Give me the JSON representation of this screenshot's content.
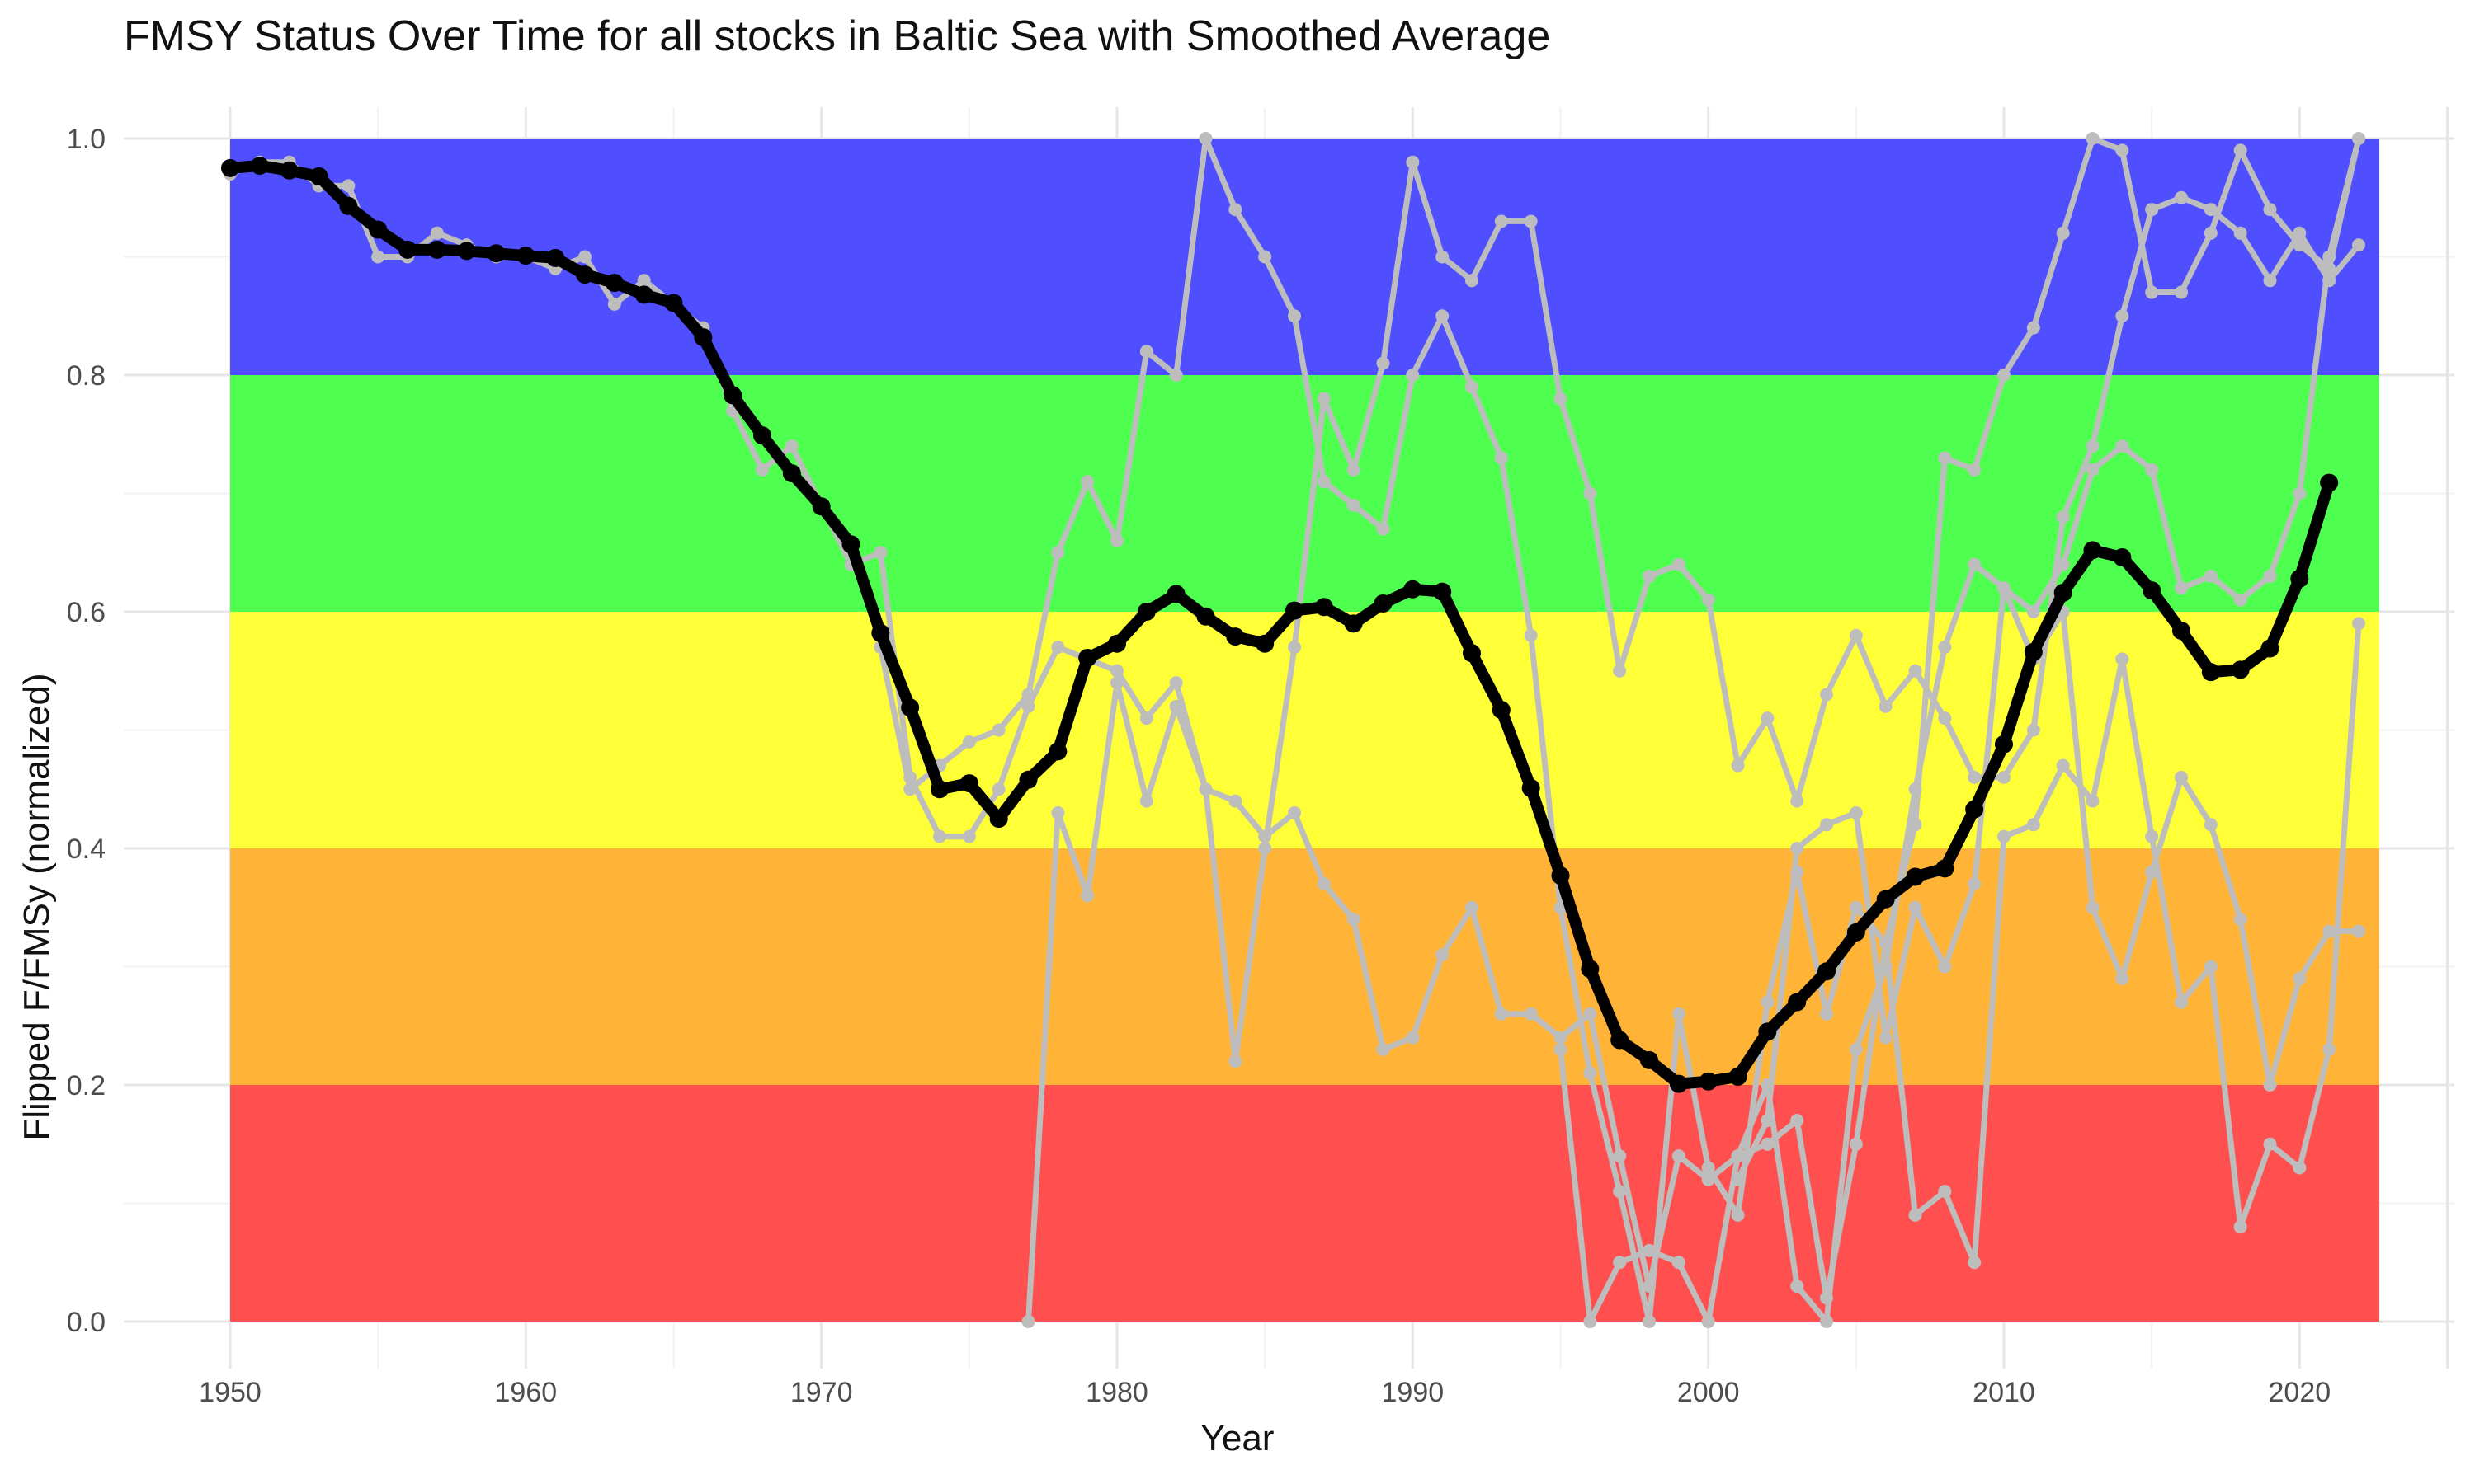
{
  "chart_data": {
    "type": "line",
    "title": "FMSY Status Over Time for all stocks in Baltic Sea with Smoothed Average",
    "xlabel": "Year",
    "ylabel": "Flipped F/FMSy (normalized)",
    "xlim": [
      1950,
      2025
    ],
    "ylim": [
      0,
      1
    ],
    "x_ticks": [
      1950,
      1960,
      1970,
      1980,
      1990,
      2000,
      2010,
      2020
    ],
    "y_ticks": [
      "0.0",
      "0.2",
      "0.4",
      "0.6",
      "0.8",
      "1.0"
    ],
    "grid": true,
    "bands": [
      {
        "from": 0.8,
        "to": 1.0,
        "color": "#4b4bff"
      },
      {
        "from": 0.6,
        "to": 0.8,
        "color": "#4bff4b"
      },
      {
        "from": 0.4,
        "to": 0.6,
        "color": "#ffff33"
      },
      {
        "from": 0.2,
        "to": 0.4,
        "color": "#ffb233"
      },
      {
        "from": 0.0,
        "to": 0.2,
        "color": "#ff4b4b"
      }
    ],
    "stock_color": "#bdbdbd",
    "average_color": "#000000",
    "stocks": [
      {
        "x": [
          1950,
          1951,
          1952,
          1953,
          1954,
          1955,
          1956,
          1957,
          1958,
          1959,
          1960,
          1961,
          1962,
          1963,
          1964,
          1965,
          1966,
          1967,
          1968,
          1969,
          1970,
          1971,
          1972,
          1973,
          1974,
          1975,
          1976,
          1977,
          1978,
          1979,
          1980,
          1981,
          1982,
          1983,
          1984,
          1985,
          1986,
          1987,
          1988,
          1989,
          1990,
          1991,
          1992,
          1993,
          1994,
          1995,
          1996,
          1997,
          1998,
          1999,
          2000,
          2001,
          2002,
          2003,
          2004,
          2005,
          2006,
          2007,
          2008,
          2009,
          2010,
          2011,
          2012,
          2013,
          2014,
          2015,
          2016,
          2017,
          2018,
          2019,
          2020,
          2021,
          2022
        ],
        "y": [
          0.97,
          0.98,
          0.98,
          0.96,
          0.96,
          0.9,
          0.9,
          0.92,
          0.91,
          0.9,
          0.9,
          0.89,
          0.9,
          0.86,
          0.88,
          0.86,
          0.84,
          0.77,
          0.72,
          0.74,
          0.69,
          0.64,
          0.65,
          0.46,
          0.41,
          0.41,
          0.45,
          0.52,
          0.57,
          0.56,
          0.55,
          0.51,
          0.54,
          0.45,
          0.44,
          0.41,
          0.43,
          0.37,
          0.34,
          0.23,
          0.24,
          0.31,
          0.35,
          0.26,
          0.26,
          0.24,
          0.26,
          0.14,
          0.03,
          0.14,
          0.12,
          0.14,
          0.15,
          0.17,
          0.02,
          0.15,
          0.32,
          0.09,
          0.11,
          0.05,
          0.41,
          0.42,
          0.47,
          0.44,
          0.56,
          0.41,
          0.27,
          0.3,
          0.08,
          0.15,
          0.13,
          0.23,
          0.59
        ]
      },
      {
        "x": [
          1977,
          1978,
          1979,
          1980,
          1981,
          1982,
          1983,
          1984,
          1985,
          1986,
          1987,
          1988,
          1989,
          1990,
          1991,
          1992,
          1993,
          1994,
          1995,
          1996,
          1997,
          1998,
          1999,
          2000,
          2001,
          2002,
          2003,
          2004,
          2005,
          2006,
          2007,
          2008,
          2009,
          2010,
          2011,
          2012,
          2013,
          2014,
          2015,
          2016,
          2017,
          2018,
          2019,
          2020,
          2021,
          2022
        ],
        "y": [
          0.0,
          0.43,
          0.36,
          0.54,
          0.44,
          0.52,
          0.45,
          0.22,
          0.4,
          0.57,
          0.78,
          0.72,
          0.81,
          0.98,
          0.9,
          0.88,
          0.93,
          0.93,
          0.78,
          0.7,
          0.55,
          0.63,
          0.64,
          0.61,
          0.47,
          0.51,
          0.44,
          0.53,
          0.58,
          0.52,
          0.55,
          0.51,
          0.46,
          0.46,
          0.5,
          0.68,
          0.74,
          0.85,
          0.94,
          0.95,
          0.94,
          0.92,
          0.88,
          0.92,
          0.88,
          0.91
        ]
      },
      {
        "x": [
          1972,
          1973,
          1974,
          1975,
          1976,
          1977,
          1978,
          1979,
          1980,
          1981,
          1982,
          1983,
          1984,
          1985,
          1986,
          1987,
          1988,
          1989,
          1990,
          1991,
          1992,
          1993,
          1994,
          1995,
          1996,
          1997,
          1998,
          1999,
          2000,
          2001,
          2002,
          2003,
          2004,
          2005,
          2006,
          2007,
          2008,
          2009,
          2010,
          2011,
          2012,
          2013,
          2014,
          2015,
          2016,
          2017,
          2018,
          2019,
          2020,
          2021,
          2022
        ],
        "y": [
          0.57,
          0.45,
          0.47,
          0.49,
          0.5,
          0.53,
          0.65,
          0.71,
          0.66,
          0.82,
          0.8,
          1.0,
          0.94,
          0.9,
          0.85,
          0.71,
          0.69,
          0.67,
          0.8,
          0.85,
          0.79,
          0.73,
          0.58,
          0.35,
          0.21,
          0.11,
          0.0,
          0.26,
          0.13,
          0.09,
          0.27,
          0.38,
          0.26,
          0.35,
          0.32,
          0.42,
          0.73,
          0.72,
          0.8,
          0.84,
          0.92,
          1.0,
          0.99,
          0.87,
          0.87,
          0.92,
          0.99,
          0.94,
          0.91,
          0.89,
          1.0
        ]
      },
      {
        "x": [
          1995,
          1996,
          1997,
          1998,
          1999,
          2000,
          2001,
          2002,
          2003,
          2004,
          2005,
          2006,
          2007,
          2008,
          2009,
          2010,
          2011,
          2012,
          2013,
          2014,
          2015,
          2016,
          2017,
          2018,
          2019,
          2020,
          2021,
          2022
        ],
        "y": [
          0.23,
          0.0,
          0.05,
          0.06,
          0.05,
          0.0,
          0.14,
          0.2,
          0.03,
          0.0,
          0.23,
          0.3,
          0.45,
          0.57,
          0.64,
          0.62,
          0.6,
          0.64,
          0.72,
          0.74,
          0.72,
          0.62,
          0.63,
          0.61,
          0.63,
          0.7,
          0.9,
          1.0
        ]
      },
      {
        "x": [
          2001,
          2002,
          2003,
          2004,
          2005,
          2006,
          2007,
          2008,
          2009,
          2010,
          2011,
          2012,
          2013,
          2014,
          2015,
          2016,
          2017,
          2018,
          2019,
          2020,
          2021,
          2022
        ],
        "y": [
          0.12,
          0.17,
          0.4,
          0.42,
          0.43,
          0.24,
          0.35,
          0.3,
          0.37,
          0.62,
          0.56,
          0.6,
          0.35,
          0.29,
          0.38,
          0.46,
          0.42,
          0.34,
          0.2,
          0.29,
          0.33,
          0.33
        ]
      }
    ],
    "smoothed_average": {
      "x": [
        1950,
        1951,
        1952,
        1953,
        1954,
        1955,
        1956,
        1957,
        1958,
        1959,
        1960,
        1961,
        1962,
        1963,
        1964,
        1965,
        1966,
        1967,
        1968,
        1969,
        1970,
        1971,
        1972,
        1973,
        1974,
        1975,
        1976,
        1977,
        1978,
        1979,
        1980,
        1981,
        1982,
        1983,
        1984,
        1985,
        1986,
        1987,
        1988,
        1989,
        1990,
        1991,
        1992,
        1993,
        1994,
        1995,
        1996,
        1997,
        1998,
        1999,
        2000,
        2001,
        2002,
        2003,
        2004,
        2005,
        2006,
        2007,
        2008,
        2009,
        2010,
        2011,
        2012,
        2013,
        2014,
        2015,
        2016,
        2017,
        2018,
        2019,
        2020,
        2021
      ],
      "y": [
        0.975,
        0.977,
        0.973,
        0.968,
        0.943,
        0.923,
        0.906,
        0.906,
        0.905,
        0.903,
        0.901,
        0.899,
        0.885,
        0.878,
        0.868,
        0.861,
        0.832,
        0.783,
        0.749,
        0.717,
        0.689,
        0.657,
        0.582,
        0.519,
        0.45,
        0.455,
        0.425,
        0.458,
        0.482,
        0.561,
        0.573,
        0.6,
        0.615,
        0.596,
        0.579,
        0.573,
        0.601,
        0.604,
        0.59,
        0.607,
        0.619,
        0.617,
        0.565,
        0.517,
        0.451,
        0.377,
        0.298,
        0.238,
        0.221,
        0.201,
        0.203,
        0.207,
        0.245,
        0.27,
        0.296,
        0.329,
        0.357,
        0.376,
        0.383,
        0.433,
        0.488,
        0.566,
        0.616,
        0.652,
        0.646,
        0.618,
        0.584,
        0.549,
        0.551,
        0.569,
        0.628,
        0.709
      ]
    }
  }
}
